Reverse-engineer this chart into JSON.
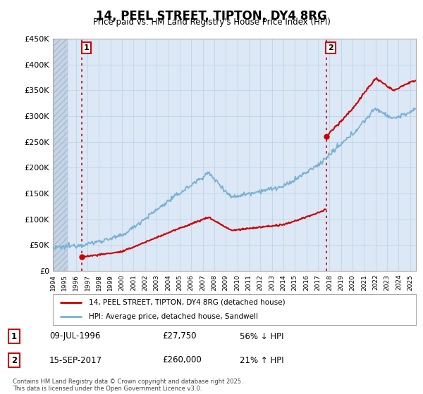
{
  "title": "14, PEEL STREET, TIPTON, DY4 8RG",
  "subtitle": "Price paid vs. HM Land Registry's House Price Index (HPI)",
  "sale1_date": "09-JUL-1996",
  "sale1_price": 27750,
  "sale1_label": "£27,750",
  "sale1_hpi_text": "56% ↓ HPI",
  "sale2_date": "15-SEP-2017",
  "sale2_price": 260000,
  "sale2_label": "£260,000",
  "sale2_hpi_text": "21% ↑ HPI",
  "legend_line1": "14, PEEL STREET, TIPTON, DY4 8RG (detached house)",
  "legend_line2": "HPI: Average price, detached house, Sandwell",
  "footer": "Contains HM Land Registry data © Crown copyright and database right 2025.\nThis data is licensed under the Open Government Licence v3.0.",
  "price_color": "#cc0000",
  "hpi_color": "#7ab0d4",
  "background_plot": "#dce8f5",
  "hatch_color": "#c5d5e5",
  "grid_color": "#b8d0e8",
  "ylim_max": 450000,
  "sale1_year": 1996.52,
  "sale2_year": 2017.71,
  "xmin": 1994.0,
  "xmax": 2025.5
}
